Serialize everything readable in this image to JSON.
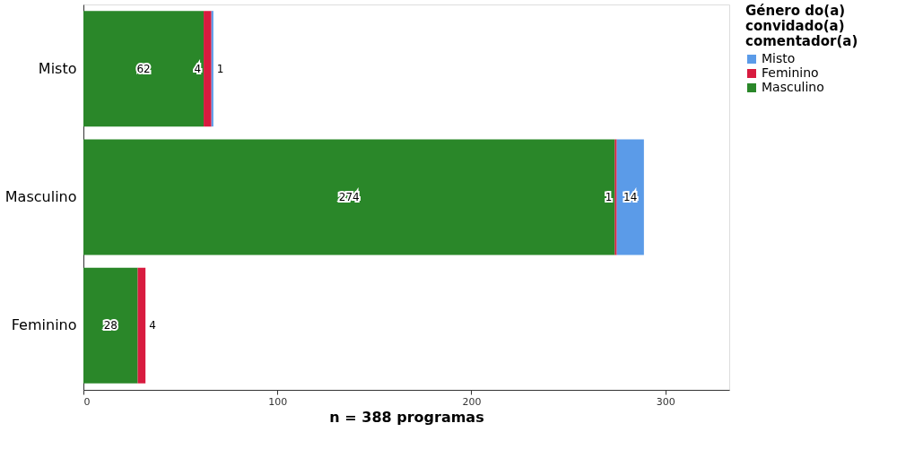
{
  "chart_data": {
    "type": "bar",
    "orientation": "horizontal",
    "stacked": true,
    "categories": [
      "Misto",
      "Masculino",
      "Feminino"
    ],
    "series": [
      {
        "name": "Masculino",
        "color": "#2a8729",
        "values": [
          62,
          274,
          28
        ],
        "value_labels": [
          "62",
          "274",
          "28"
        ]
      },
      {
        "name": "Feminino",
        "color": "#d81b3f",
        "values": [
          4,
          1,
          4
        ],
        "value_labels": [
          "4",
          "1",
          "4"
        ]
      },
      {
        "name": "Misto",
        "color": "#5b9be8",
        "values": [
          1,
          14,
          null
        ],
        "value_labels": [
          "1",
          "14",
          null
        ]
      }
    ],
    "xlim": [
      0,
      333
    ],
    "xticks": [
      0,
      100,
      200,
      300
    ],
    "xlabel": "n = 388 programas",
    "legend_title": "Género do(a) convidado(a) comentador(a)",
    "legend": "top right",
    "grid": false
  }
}
